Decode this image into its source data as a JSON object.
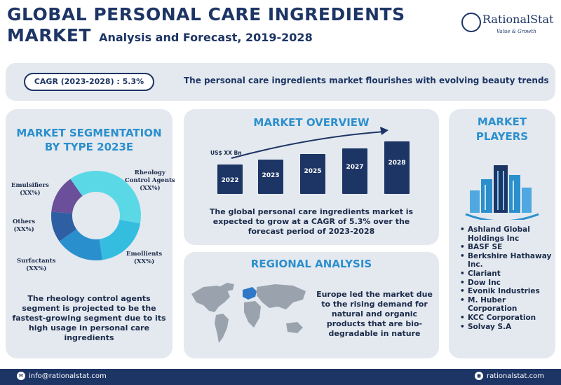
{
  "header": {
    "title_line1": "GLOBAL PERSONAL CARE INGREDIENTS",
    "title_line2": "MARKET",
    "subtitle": "Analysis and Forecast, 2019-2028"
  },
  "logo": {
    "name": "RationalStat",
    "tagline": "Value & Growth"
  },
  "banner": {
    "cagr": "CAGR (2023-2028) : 5.3%",
    "text": "The personal care ingredients market flourishes with evolving beauty trends"
  },
  "segmentation": {
    "heading_line1": "MARKET SEGMENTATION",
    "heading_line2": "BY TYPE 2023E",
    "labels": {
      "emulsifiers": [
        "Emulsifiers",
        "(XX%)"
      ],
      "rheology": [
        "Rheology",
        "Control Agents",
        "(XX%)"
      ],
      "others": [
        "Others",
        "(XX%)"
      ],
      "emollients": [
        "Emollients",
        "(XX%)"
      ],
      "surfactants": [
        "Surfactants",
        "(XX%)"
      ]
    },
    "slice_colors": [
      "#5ad8e6",
      "#35bde0",
      "#2a8fcd",
      "#2e5fa3",
      "#6b4f9b"
    ],
    "text": "The rheology control agents segment is projected to be the fastest-growing segment due to its high usage in personal care ingredients"
  },
  "overview": {
    "heading": "MARKET OVERVIEW",
    "unit_label": "US$ XX Bn",
    "bars": [
      "2022",
      "2023",
      "2025",
      "2027",
      "2028"
    ],
    "text": "The global personal care ingredients market is expected to grow at a CAGR of 5.3% over the forecast period of 2023-2028"
  },
  "regional": {
    "heading": "REGIONAL ANALYSIS",
    "text": "Europe led the market due to the rising demand for natural and organic products that are bio-degradable in nature"
  },
  "players": {
    "heading_line1": "MARKET",
    "heading_line2": "PLAYERS",
    "items": [
      "Ashland Global Holdings Inc",
      "BASF SE",
      "Berkshire Hathaway Inc.",
      "Clariant",
      "Dow Inc",
      "Evonik Industries",
      "M. Huber Corporation",
      "KCC Corporation",
      "Solvay S.A"
    ]
  },
  "footer": {
    "email": "info@rationalstat.com",
    "website": "rationalstat.com"
  },
  "colors": {
    "navy": "#1d3565",
    "accent_blue": "#2c8fcd",
    "panel_bg": "#e3e9ef"
  }
}
